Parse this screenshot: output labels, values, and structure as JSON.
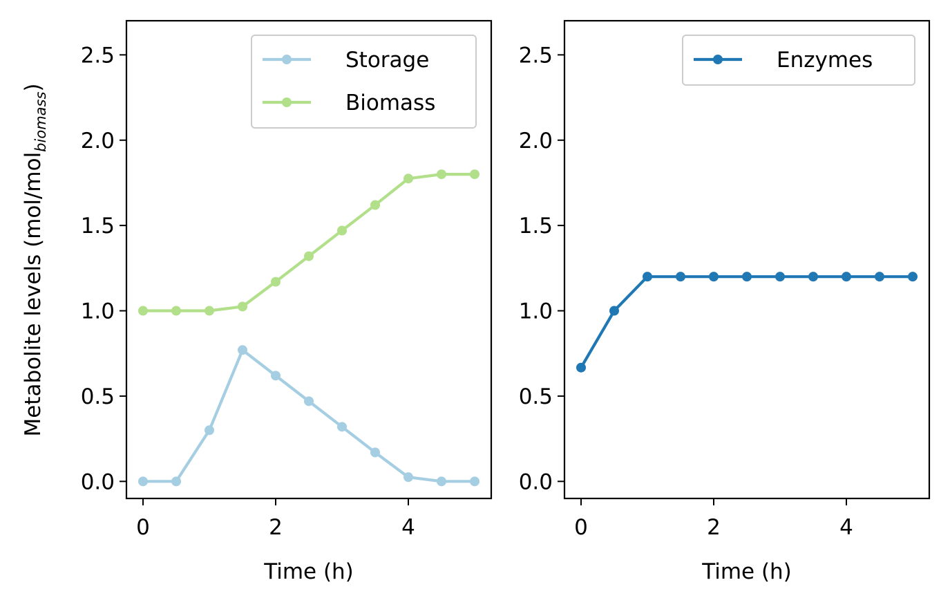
{
  "chart_data": [
    {
      "type": "line",
      "xlabel": "Time (h)",
      "ylabel": {
        "main": "Metabolite levels (mol/mol",
        "subscript": "biomass",
        "close": ")"
      },
      "xlim": [
        -0.25,
        5.25
      ],
      "ylim": [
        -0.1,
        2.7
      ],
      "xticks": [
        0,
        2,
        4
      ],
      "xtick_labels": [
        "0",
        "2",
        "4"
      ],
      "yticks": [
        0.0,
        0.5,
        1.0,
        1.5,
        2.0,
        2.5
      ],
      "ytick_labels": [
        "0.0",
        "0.5",
        "1.0",
        "1.5",
        "2.0",
        "2.5"
      ],
      "legend_position": "top-right",
      "grid": false,
      "x": [
        0,
        0.5,
        1,
        1.5,
        2,
        2.5,
        3,
        3.5,
        4,
        4.5,
        5
      ],
      "series": [
        {
          "name": "Storage",
          "color": "#a6cee3",
          "values": [
            0.0,
            0.0,
            0.3,
            0.77,
            0.62,
            0.47,
            0.32,
            0.17,
            0.025,
            0.0,
            0.0
          ]
        },
        {
          "name": "Biomass",
          "color": "#b2df8a",
          "values": [
            1.0,
            1.0,
            1.0,
            1.025,
            1.17,
            1.32,
            1.47,
            1.62,
            1.775,
            1.8,
            1.8
          ]
        }
      ]
    },
    {
      "type": "line",
      "xlabel": "Time (h)",
      "xlim": [
        -0.25,
        5.25
      ],
      "ylim": [
        -0.1,
        2.7
      ],
      "xticks": [
        0,
        2,
        4
      ],
      "xtick_labels": [
        "0",
        "2",
        "4"
      ],
      "yticks": [
        0.0,
        0.5,
        1.0,
        1.5,
        2.0,
        2.5
      ],
      "ytick_labels": [
        "0.0",
        "0.5",
        "1.0",
        "1.5",
        "2.0",
        "2.5"
      ],
      "legend_position": "top-right",
      "grid": false,
      "x": [
        0,
        0.5,
        1,
        1.5,
        2,
        2.5,
        3,
        3.5,
        4,
        4.5,
        5
      ],
      "series": [
        {
          "name": "Enzymes",
          "color": "#1f78b4",
          "values": [
            0.667,
            1.0,
            1.2,
            1.2,
            1.2,
            1.2,
            1.2,
            1.2,
            1.2,
            1.2,
            1.2
          ]
        }
      ]
    }
  ]
}
